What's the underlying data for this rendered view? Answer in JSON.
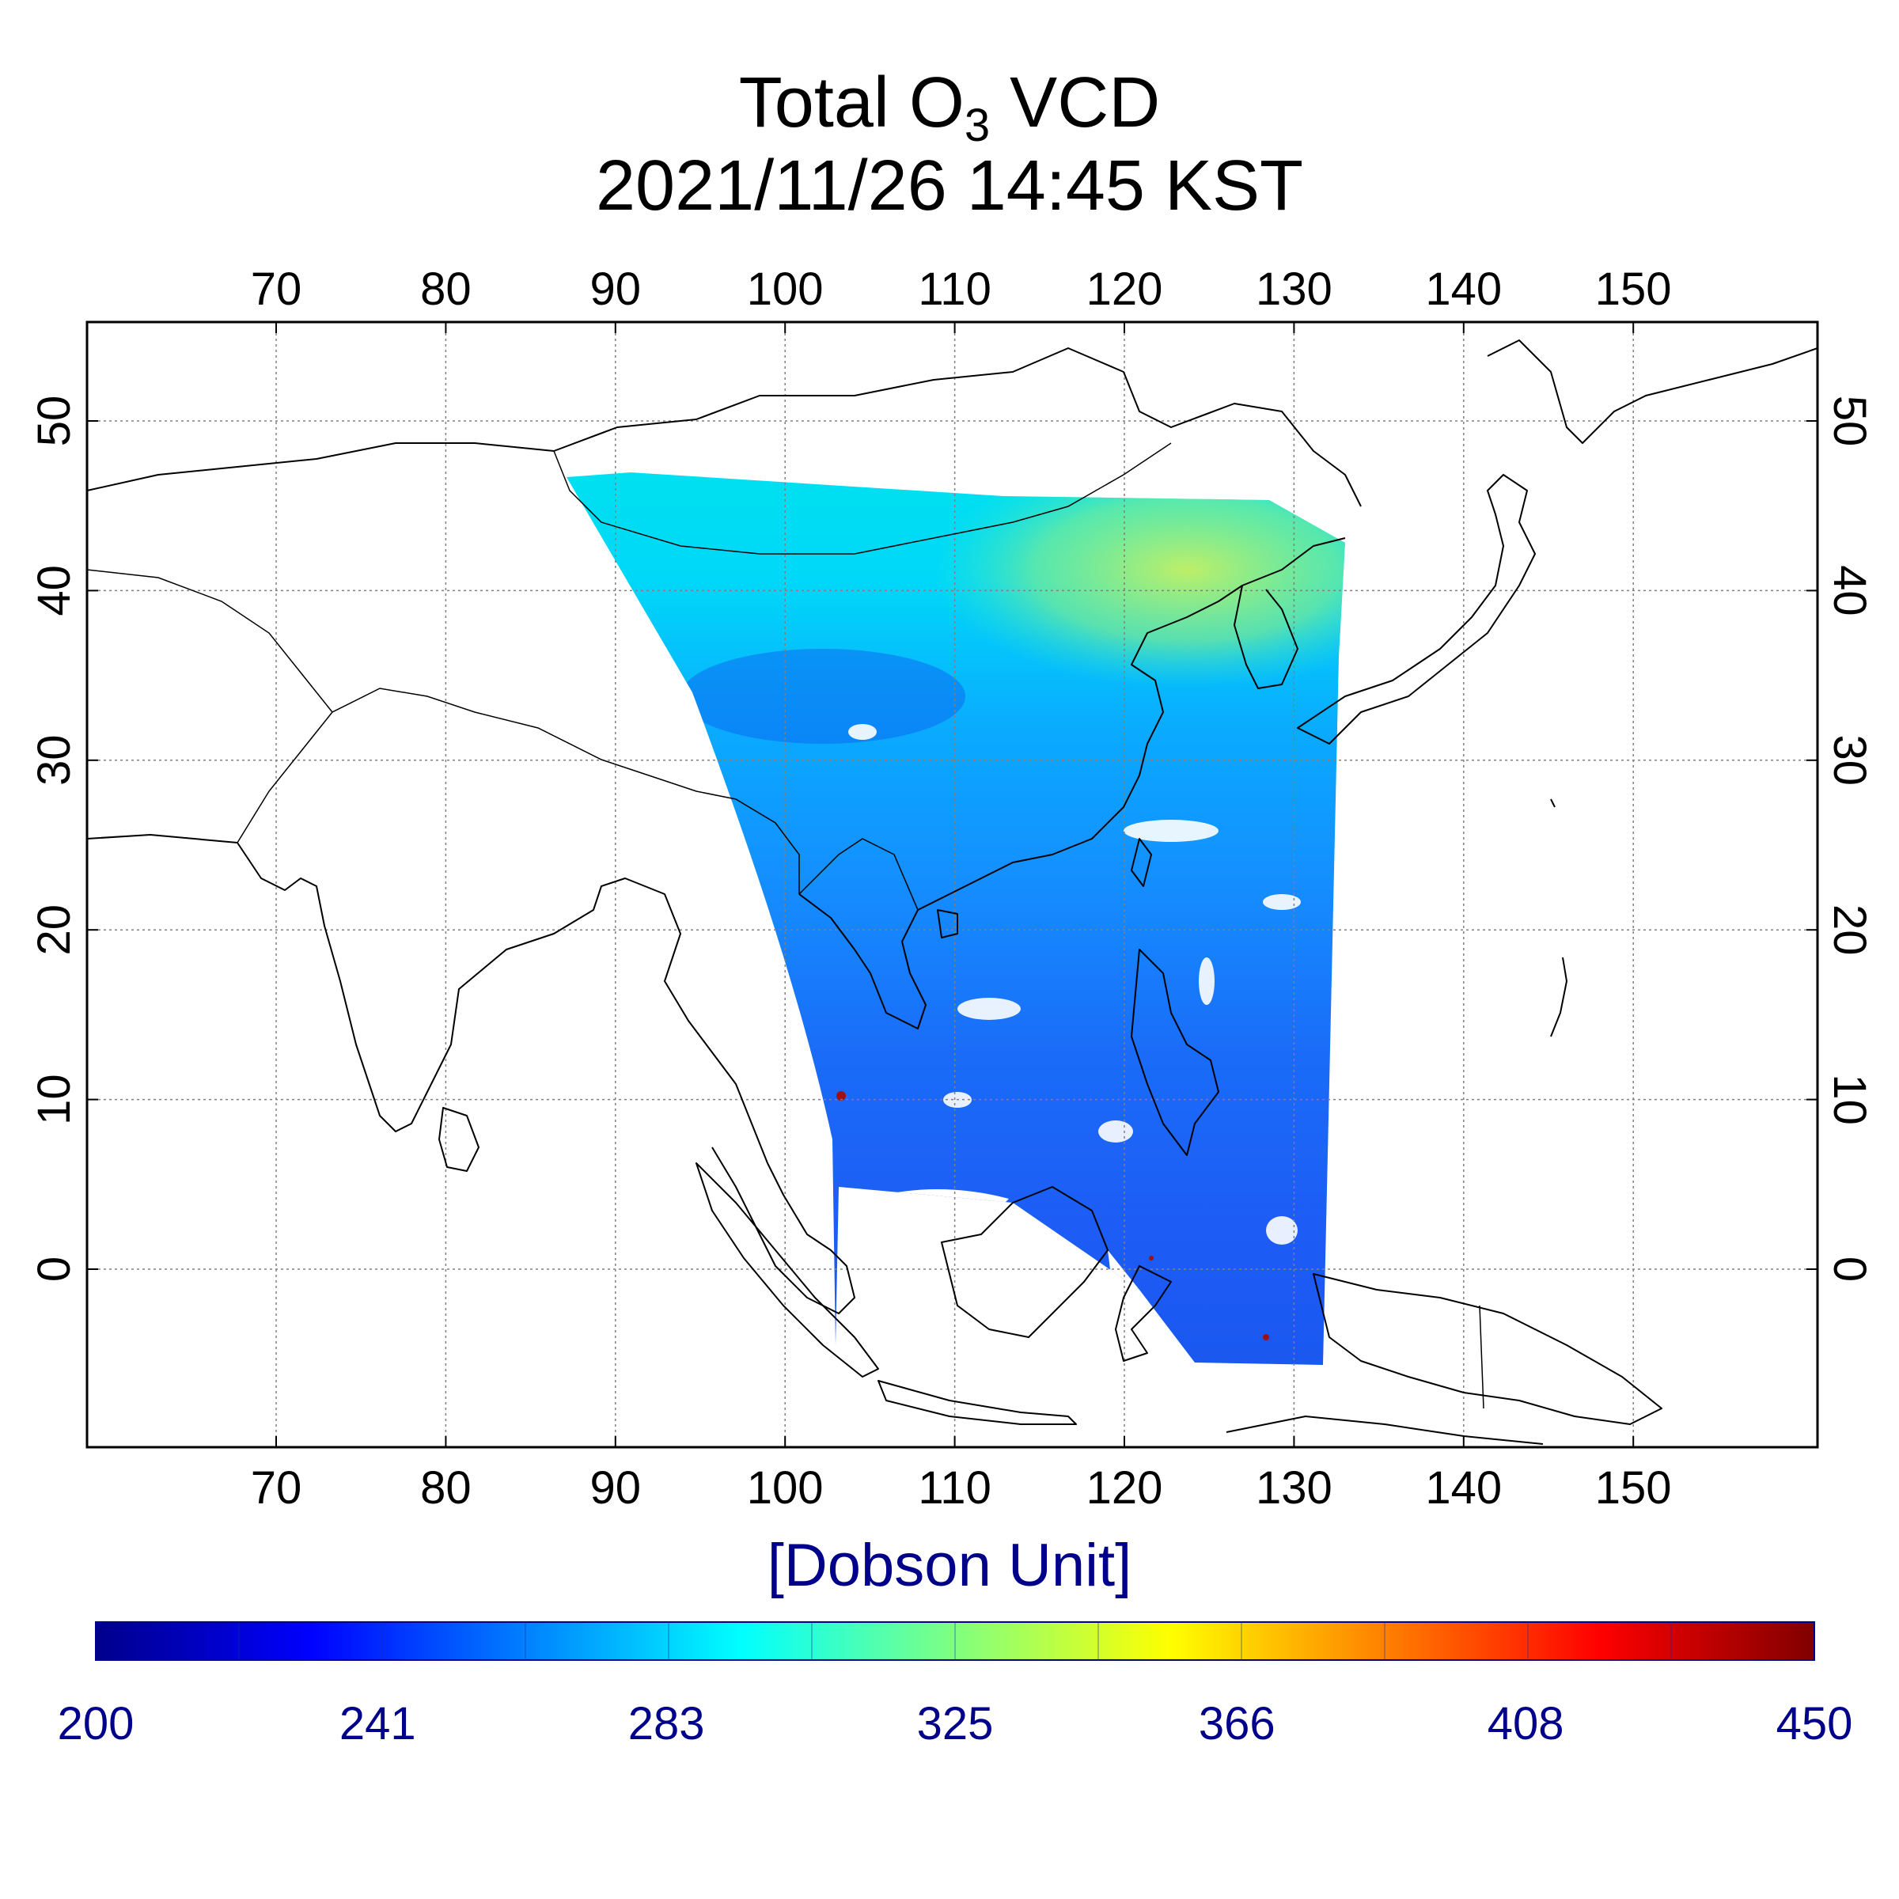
{
  "title": {
    "line1_prefix": "Total O",
    "line1_subscript": "3",
    "line1_suffix": " VCD",
    "line2": "2021/11/26 14:45 KST"
  },
  "map": {
    "lon_range": [
      59,
      161
    ],
    "lat_range": [
      -10.5,
      56
    ],
    "lon_ticks": [
      "70",
      "80",
      "90",
      "100",
      "110",
      "120",
      "130",
      "140",
      "150"
    ],
    "lat_ticks": [
      "50",
      "40",
      "30",
      "20",
      "10",
      "0"
    ],
    "gridlines": true,
    "gridline_style": "dotted"
  },
  "colorbar": {
    "unit_label": "[Dobson Unit]",
    "range": [
      200,
      450
    ],
    "tick_labels": [
      "200",
      "241",
      "283",
      "325",
      "366",
      "408",
      "450"
    ],
    "colors": [
      "#00008b",
      "#0000ff",
      "#0080ff",
      "#00ffff",
      "#80ff80",
      "#ffff00",
      "#ff8000",
      "#ff0000",
      "#800000"
    ]
  },
  "observed_field": {
    "dominant_range_du": [
      250,
      340
    ],
    "north_high_region": "Korea / NE China ~330-340 DU",
    "south_region": "Indonesia ~250-260 DU"
  }
}
